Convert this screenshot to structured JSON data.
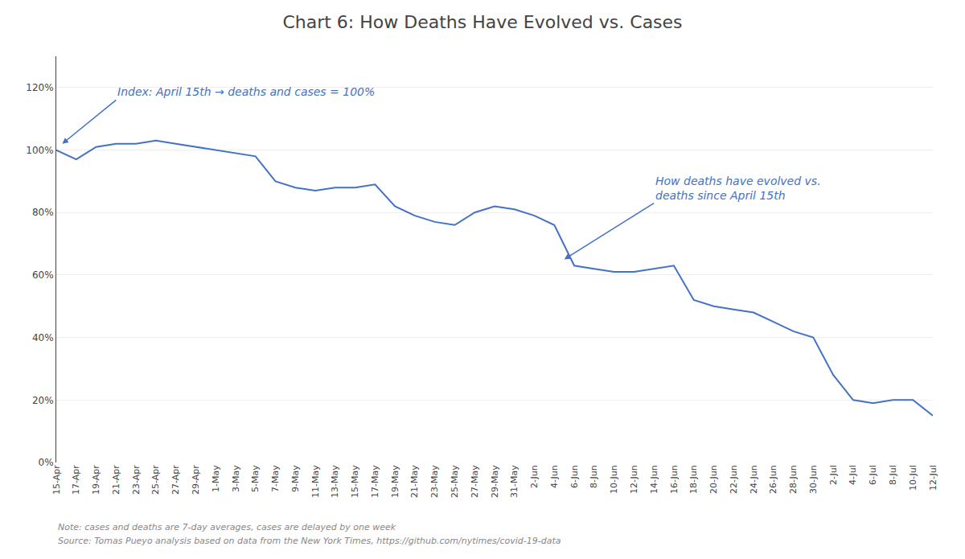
{
  "chart_data": {
    "type": "line",
    "title": "Chart 6: How Deaths Have Evolved vs. Cases",
    "categories": [
      "15-Apr",
      "17-Apr",
      "19-Apr",
      "21-Apr",
      "23-Apr",
      "25-Apr",
      "27-Apr",
      "29-Apr",
      "1-May",
      "3-May",
      "5-May",
      "7-May",
      "9-May",
      "11-May",
      "13-May",
      "15-May",
      "17-May",
      "19-May",
      "21-May",
      "23-May",
      "25-May",
      "27-May",
      "29-May",
      "31-May",
      "2-Jun",
      "4-Jun",
      "6-Jun",
      "8-Jun",
      "10-Jun",
      "12-Jun",
      "14-Jun",
      "16-Jun",
      "18-Jun",
      "20-Jun",
      "22-Jun",
      "24-Jun",
      "26-Jun",
      "28-Jun",
      "30-Jun",
      "2-Jul",
      "4-Jul",
      "6-Jul",
      "8-Jul",
      "10-Jul",
      "12-Jul"
    ],
    "values": [
      100,
      97,
      101,
      102,
      102,
      103,
      102,
      101,
      100,
      99,
      98,
      90,
      88,
      87,
      88,
      88,
      89,
      82,
      79,
      77,
      76,
      80,
      82,
      81,
      79,
      76,
      63,
      62,
      61,
      61,
      62,
      63,
      52,
      50,
      49,
      48,
      45,
      42,
      40,
      28,
      20,
      19,
      20,
      20,
      15
    ],
    "color": "#4472C4",
    "ylim": [
      0,
      130
    ],
    "yticks": [
      {
        "value": 0,
        "label": "0%"
      },
      {
        "value": 20,
        "label": "20%"
      },
      {
        "value": 40,
        "label": "40%"
      },
      {
        "value": 60,
        "label": "60%"
      },
      {
        "value": 80,
        "label": "80%"
      },
      {
        "value": 100,
        "label": "100%"
      },
      {
        "value": 120,
        "label": "120%"
      }
    ],
    "grid": true,
    "annotations": [
      "Index: April 15th → deaths and cases = 100%",
      "How deaths have evolved vs.\ndeaths since April 15th"
    ],
    "notes": [
      "Note: cases and deaths are 7-day averages, cases are delayed by one week",
      "Source: Tomas Pueyo analysis based on data from the New York Times, https://github.com/nytimes/covid-19-data"
    ]
  }
}
